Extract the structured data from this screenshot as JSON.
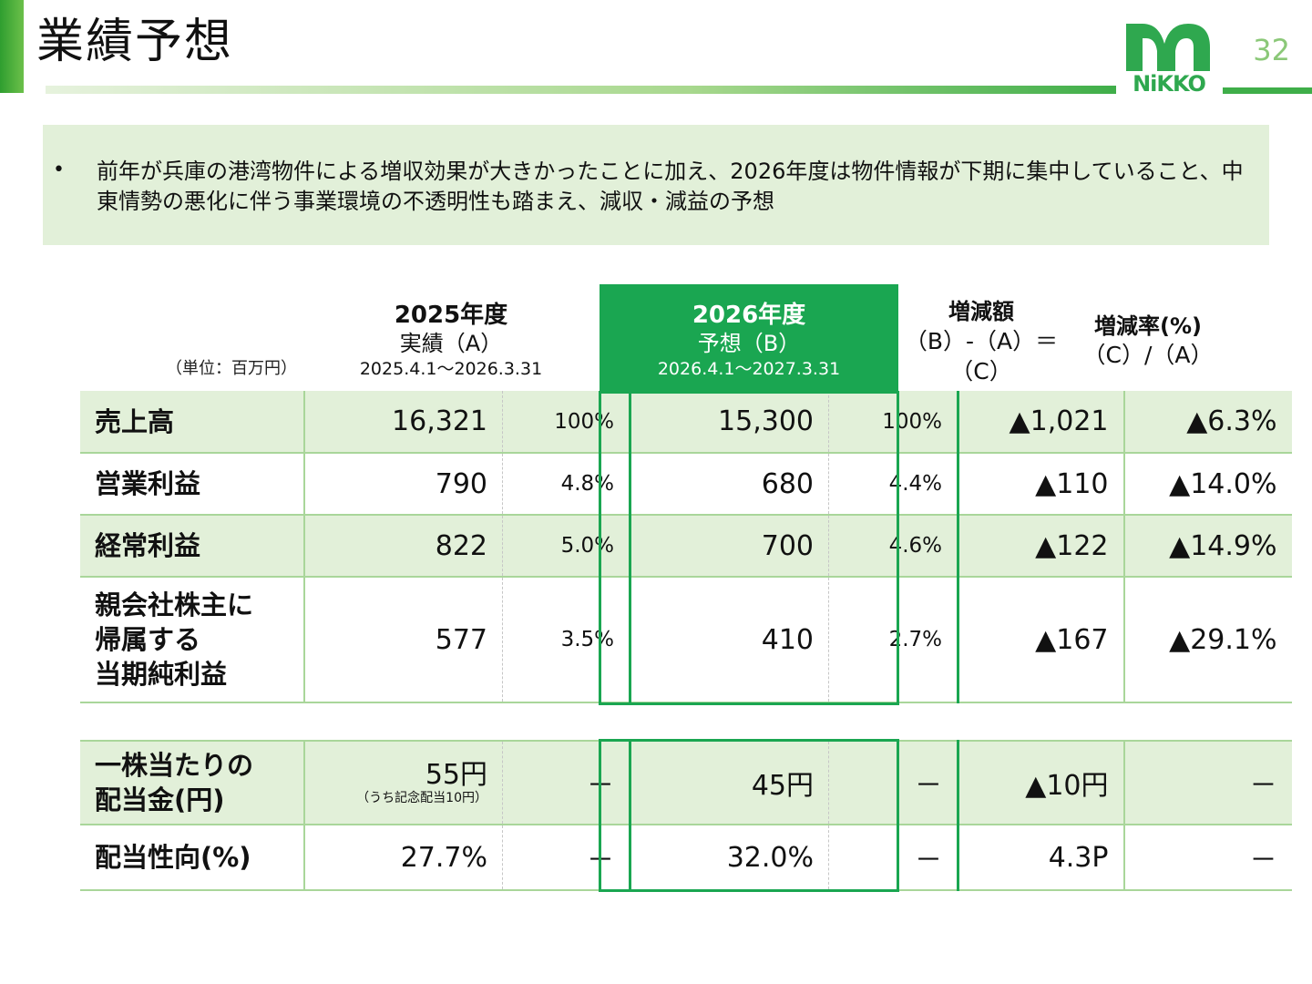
{
  "header": {
    "title": "業績予想",
    "page_number": "32",
    "logo_text": "NiKKO",
    "colors": {
      "accent": "#2f9e2f",
      "brand_green": "#1aa651",
      "light_green": "#e2f0d9"
    }
  },
  "note": {
    "bullet": "•",
    "text": "前年が兵庫の港湾物件による増収効果が大きかったことに加え、2026年度は物件情報が下期に集中していること、中東情勢の悪化に伴う事業環境の不透明性も踏まえ、減収・減益の予想"
  },
  "table": {
    "unit": "（単位：百万円）",
    "col_2025": {
      "year": "2025年度",
      "kind": "実績（A）",
      "period": "2025.4.1～2026.3.31"
    },
    "col_2026": {
      "year": "2026年度",
      "kind": "予想（B）",
      "period": "2026.4.1～2027.3.31"
    },
    "col_diff": {
      "l1": "増減額",
      "l2": "（B）-（A）＝",
      "l3": "（C）"
    },
    "col_rate": {
      "l1": "増減率(%)",
      "l2": "（C）/（A）"
    },
    "rows": [
      {
        "label": "売上高",
        "a": "16,321",
        "a_pct": "100%",
        "b": "15,300",
        "b_pct": "100%",
        "diff": "▲1,021",
        "rate": "▲6.3%"
      },
      {
        "label": "営業利益",
        "a": "790",
        "a_pct": "4.8%",
        "b": "680",
        "b_pct": "4.4%",
        "diff": "▲110",
        "rate": "▲14.0%"
      },
      {
        "label": "経常利益",
        "a": "822",
        "a_pct": "5.0%",
        "b": "700",
        "b_pct": "4.6%",
        "diff": "▲122",
        "rate": "▲14.9%"
      },
      {
        "label_l1": "親会社株主に",
        "label_l2": "帰属する",
        "label_l3": "当期純利益",
        "a": "577",
        "a_pct": "3.5%",
        "b": "410",
        "b_pct": "2.7%",
        "diff": "▲167",
        "rate": "▲29.1%"
      }
    ],
    "dividend_rows": [
      {
        "label_l1": "一株当たりの",
        "label_l2": "配当金(円)",
        "a": "55円",
        "a_note": "（うち記念配当10円）",
        "a_pct": "－",
        "b": "45円",
        "b_pct": "－",
        "diff": "▲10円",
        "rate": "－"
      },
      {
        "label": "配当性向(%)",
        "a": "27.7%",
        "a_pct": "－",
        "b": "32.0%",
        "b_pct": "－",
        "diff": "4.3P",
        "rate": "－"
      }
    ]
  }
}
